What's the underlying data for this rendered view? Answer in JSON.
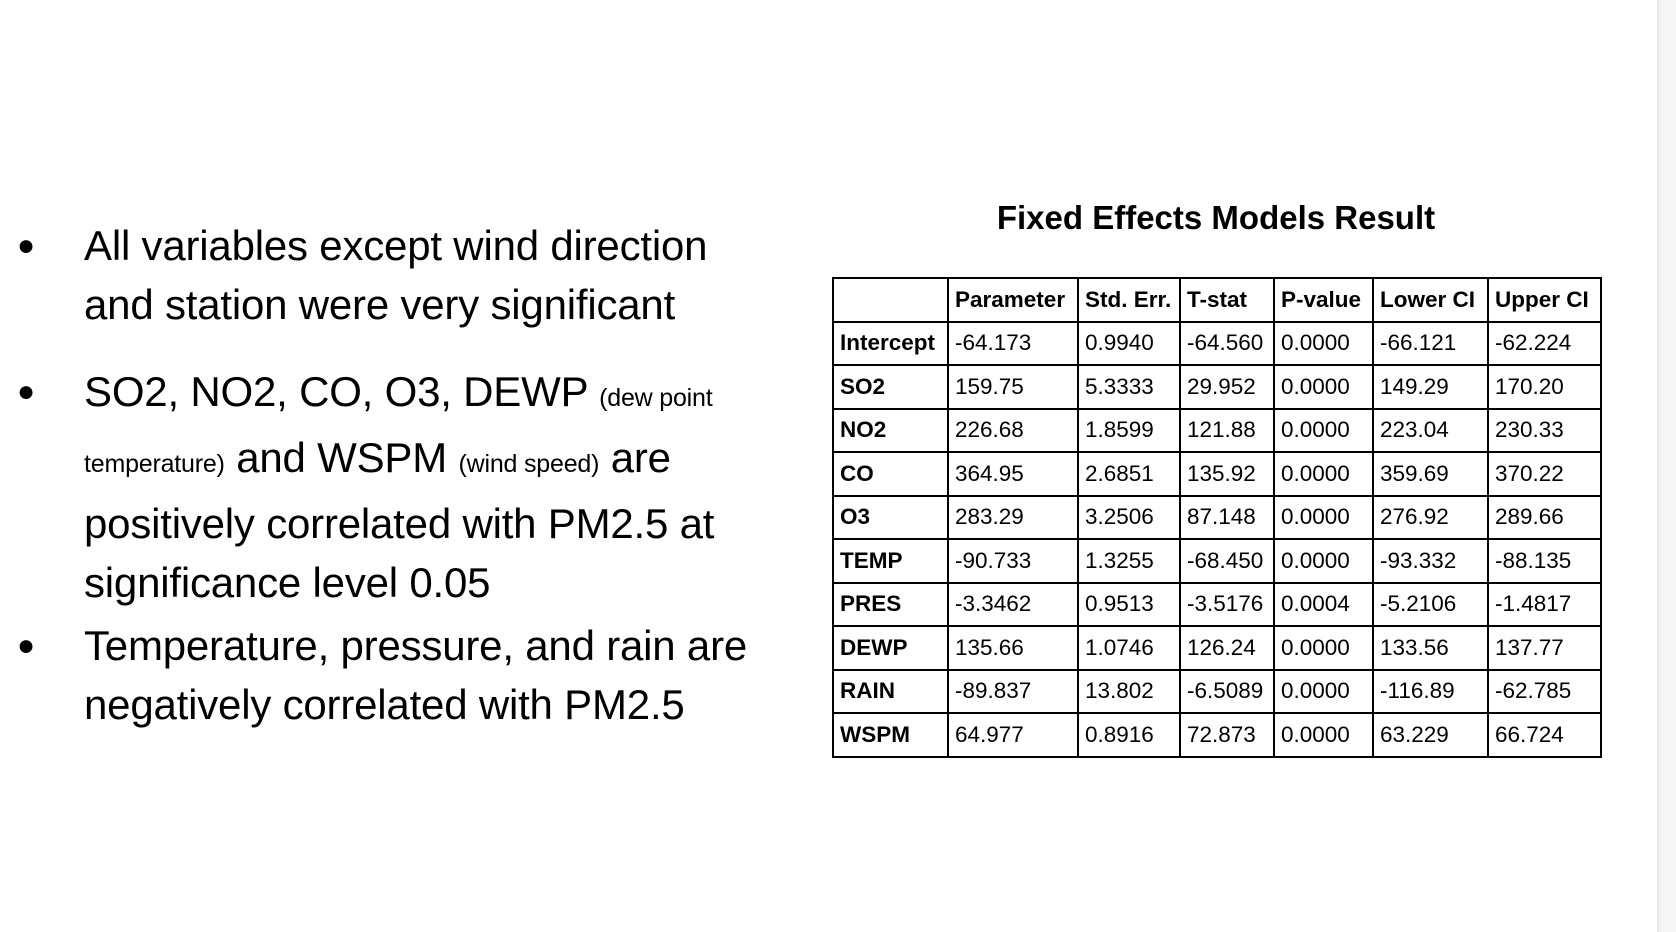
{
  "bullets": {
    "b1": {
      "text": "All variables except wind direction and station were very significant"
    },
    "b2": {
      "part1": "SO2, NO2, CO, O3, DEWP",
      "part1_note": "(dew point temperature)",
      "part2": "and WSPM",
      "part2_note": "(wind speed)",
      "part3": "are positively correlated with PM2.5 at significance level 0.05"
    },
    "b3": {
      "text": "Temperature, pressure, and rain are negatively correlated with PM2.5"
    },
    "marker": "●"
  },
  "table": {
    "title": "Fixed Effects Models Result",
    "headers": [
      "",
      "Parameter",
      "Std. Err.",
      "T-stat",
      "P-value",
      "Lower CI",
      "Upper CI"
    ],
    "rows": [
      [
        "Intercept",
        "-64.173",
        "0.9940",
        "-64.560",
        "0.0000",
        "-66.121",
        "-62.224"
      ],
      [
        "SO2",
        "159.75",
        "5.3333",
        "29.952",
        "0.0000",
        "149.29",
        "170.20"
      ],
      [
        "NO2",
        "226.68",
        "1.8599",
        "121.88",
        "0.0000",
        "223.04",
        "230.33"
      ],
      [
        "CO",
        "364.95",
        "2.6851",
        "135.92",
        "0.0000",
        "359.69",
        "370.22"
      ],
      [
        "O3",
        "283.29",
        "3.2506",
        "87.148",
        "0.0000",
        "276.92",
        "289.66"
      ],
      [
        "TEMP",
        "-90.733",
        "1.3255",
        "-68.450",
        "0.0000",
        "-93.332",
        "-88.135"
      ],
      [
        "PRES",
        "-3.3462",
        "0.9513",
        "-3.5176",
        "0.0004",
        "-5.2106",
        "-1.4817"
      ],
      [
        "DEWP",
        "135.66",
        "1.0746",
        "126.24",
        "0.0000",
        "133.56",
        "137.77"
      ],
      [
        "RAIN",
        "-89.837",
        "13.802",
        "-6.5089",
        "0.0000",
        "-116.89",
        "-62.785"
      ],
      [
        "WSPM",
        "64.977",
        "0.8916",
        "72.873",
        "0.0000",
        "63.229",
        "66.724"
      ]
    ]
  }
}
